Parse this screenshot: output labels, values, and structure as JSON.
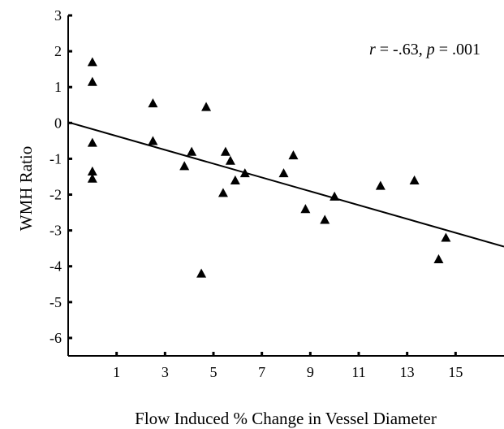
{
  "chart_data": {
    "type": "scatter",
    "title": "",
    "xlabel": "Flow Induced % Change in Vessel Diameter",
    "ylabel": "WMH Ratio",
    "xlim": [
      -1,
      17
    ],
    "ylim": [
      -6.5,
      3
    ],
    "x_ticks": [
      1,
      3,
      5,
      7,
      9,
      11,
      13,
      15
    ],
    "y_ticks": [
      3,
      2,
      1,
      0,
      -1,
      -2,
      -3,
      -4,
      -5,
      -6
    ],
    "x_tick_labels": [
      "1",
      "3",
      "5",
      "7",
      "9",
      "11",
      "13",
      "15"
    ],
    "y_tick_labels": [
      "3",
      "2",
      "1",
      "0",
      "-1",
      "-2",
      "-3",
      "-4",
      "-5",
      "-6"
    ],
    "marker": "triangle",
    "grid": false,
    "points": [
      {
        "x": 0.0,
        "y": 1.7
      },
      {
        "x": 0.0,
        "y": 1.15
      },
      {
        "x": 0.0,
        "y": -0.55
      },
      {
        "x": 0.0,
        "y": -1.35
      },
      {
        "x": 0.0,
        "y": -1.55
      },
      {
        "x": 2.5,
        "y": 0.55
      },
      {
        "x": 2.5,
        "y": -0.5
      },
      {
        "x": 3.8,
        "y": -1.2
      },
      {
        "x": 4.1,
        "y": -0.8
      },
      {
        "x": 4.5,
        "y": -4.2
      },
      {
        "x": 4.7,
        "y": 0.45
      },
      {
        "x": 5.4,
        "y": -1.95
      },
      {
        "x": 5.5,
        "y": -0.8
      },
      {
        "x": 5.7,
        "y": -1.05
      },
      {
        "x": 5.9,
        "y": -1.6
      },
      {
        "x": 6.3,
        "y": -1.4
      },
      {
        "x": 7.9,
        "y": -1.4
      },
      {
        "x": 8.3,
        "y": -0.9
      },
      {
        "x": 8.8,
        "y": -2.4
      },
      {
        "x": 9.6,
        "y": -2.7
      },
      {
        "x": 10.0,
        "y": -2.05
      },
      {
        "x": 11.9,
        "y": -1.75
      },
      {
        "x": 13.3,
        "y": -1.6
      },
      {
        "x": 14.3,
        "y": -3.8
      },
      {
        "x": 14.6,
        "y": -3.2
      }
    ],
    "regression_line": {
      "x": [
        -1,
        17
      ],
      "y": [
        0.02,
        -3.45
      ]
    },
    "annotation": {
      "r_symbol": "r",
      "r_value": " = -.63, ",
      "p_symbol": "p",
      "p_value": " = .001"
    }
  }
}
